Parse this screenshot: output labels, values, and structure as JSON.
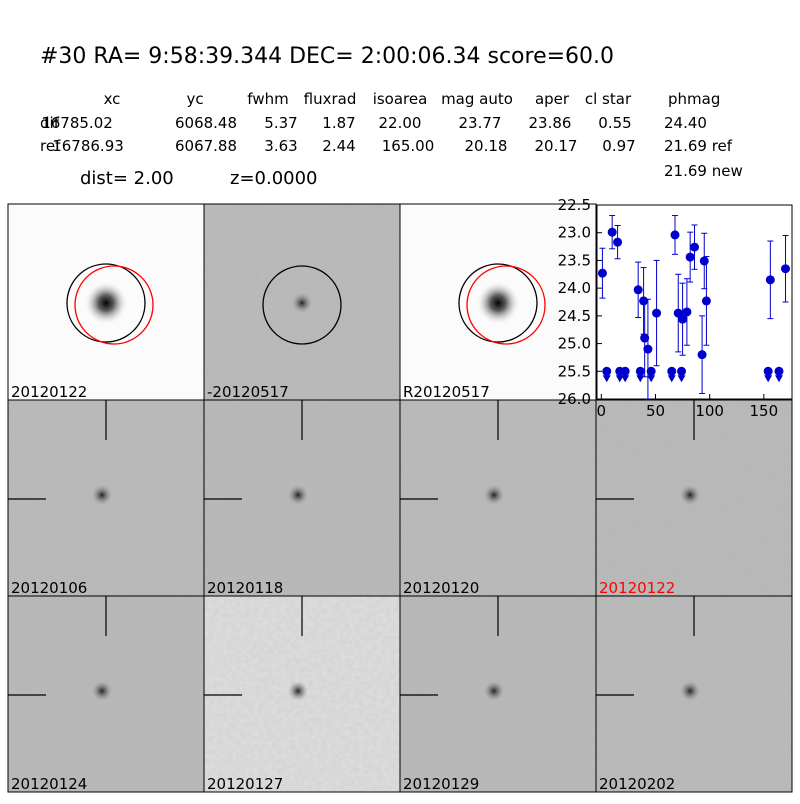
{
  "header": {
    "title": "#30   RA= 9:58:39.344 DEC= 2:00:06.34      score=60.0",
    "columns": [
      "xc",
      "yc",
      "fwhm",
      "fluxrad",
      "isoarea",
      "mag auto",
      "aper",
      "cl star",
      "phmag"
    ],
    "rows": [
      [
        "dif",
        "16785.02",
        "6068.48",
        "5.37",
        "1.87",
        "22.00",
        "23.77",
        "23.86",
        "0.55",
        "24.40"
      ],
      [
        "ref",
        "16786.93",
        "6067.88",
        "3.63",
        "2.44",
        "165.00",
        "20.18",
        "20.17",
        "0.97",
        "21.69 ref"
      ]
    ],
    "new": "21.69 new",
    "dist": "dist=  2.00",
    "z": "z=0.0000"
  },
  "panels": [
    {
      "label": "20120122",
      "color": "#000"
    },
    {
      "label": "-20120517",
      "color": "#000"
    },
    {
      "label": "R20120517",
      "color": "#000"
    },
    {
      "label": "20120106",
      "color": "#000"
    },
    {
      "label": "20120118",
      "color": "#000"
    },
    {
      "label": "20120120",
      "color": "#000"
    },
    {
      "label": "20120122",
      "color": "#ff0000"
    },
    {
      "label": "20120124",
      "color": "#000"
    },
    {
      "label": "20120127",
      "color": "#000"
    },
    {
      "label": "20120129",
      "color": "#000"
    },
    {
      "label": "20120202",
      "color": "#000"
    }
  ],
  "chart_data": {
    "type": "scatter",
    "xlim": [
      -4,
      176
    ],
    "ylim": [
      26.0,
      22.5
    ],
    "xticks": [
      0,
      50,
      100,
      150
    ],
    "yticks": [
      22.5,
      {
        "value": 23,
        "label": "23.0"
      },
      23.5,
      {
        "value": 24,
        "label": "24.0"
      },
      24.5,
      {
        "value": 25,
        "label": "25.0"
      },
      25.5,
      {
        "value": 26,
        "label": "26.0"
      }
    ],
    "series": [
      {
        "color": "#0000cc",
        "x": [
          1,
          10,
          15,
          34,
          39,
          40,
          43,
          51,
          68,
          71,
          75,
          79,
          82,
          86,
          93,
          95,
          97,
          156,
          170
        ],
        "values": [
          23.73,
          22.99,
          23.17,
          24.03,
          24.23,
          24.9,
          25.1,
          24.45,
          23.04,
          24.45,
          24.56,
          24.43,
          23.44,
          23.26,
          25.2,
          23.51,
          24.23,
          23.85,
          23.65
        ],
        "errors": [
          0.45,
          0.3,
          0.3,
          0.5,
          0.6,
          0.7,
          0.9,
          0.95,
          0.35,
          0.7,
          0.65,
          0.6,
          0.45,
          0.4,
          0.7,
          0.5,
          0.8,
          0.7,
          0.6
        ]
      },
      {
        "color": "#0000cc",
        "marker": "limit",
        "x": [
          5,
          17,
          22,
          36,
          46,
          65,
          74,
          154,
          164
        ],
        "values": [
          25.5,
          25.5,
          25.5,
          25.5,
          25.5,
          25.5,
          25.5,
          25.5,
          25.5
        ]
      }
    ]
  }
}
